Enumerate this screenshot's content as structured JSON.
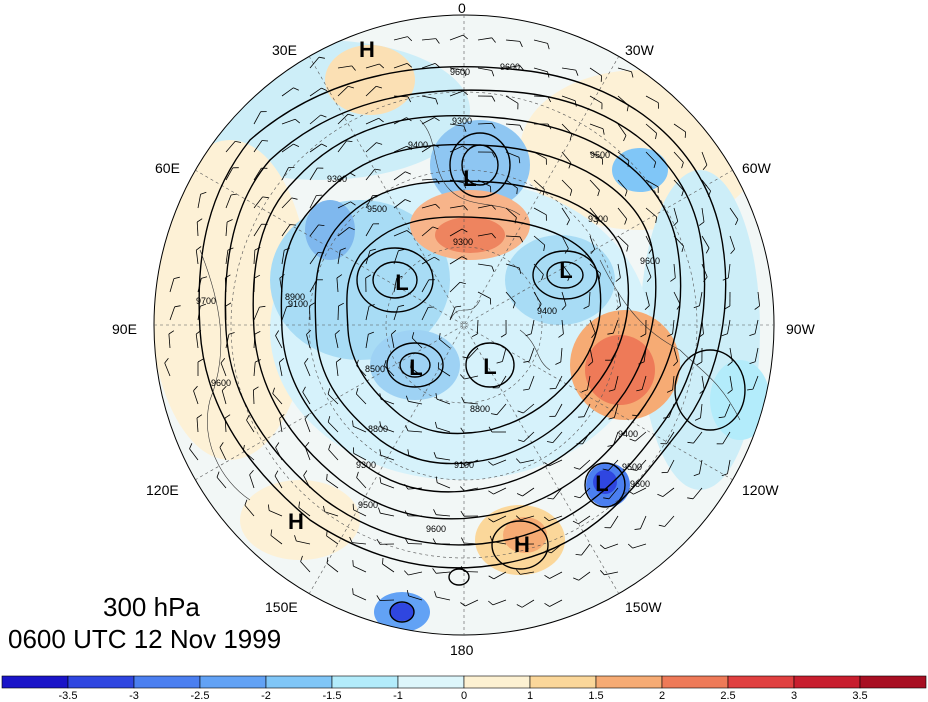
{
  "title": {
    "level": "300 hPa",
    "time": "0600 UTC 12 Nov 1999"
  },
  "longitude_labels": [
    "0",
    "30W",
    "60W",
    "90W",
    "120W",
    "150W",
    "180",
    "150E",
    "120E",
    "90E",
    "60E",
    "30E"
  ],
  "pressure_systems": [
    {
      "type": "H",
      "label": "H"
    },
    {
      "type": "L",
      "label": "L"
    },
    {
      "type": "L",
      "label": "L"
    },
    {
      "type": "L",
      "label": "L"
    },
    {
      "type": "L",
      "label": "L"
    },
    {
      "type": "L",
      "label": "L"
    },
    {
      "type": "L",
      "label": "L"
    },
    {
      "type": "H",
      "label": "H"
    },
    {
      "type": "H",
      "label": "H"
    }
  ],
  "contour_labels": [
    "9600",
    "9600",
    "9300",
    "9400",
    "9500",
    "9300",
    "9300",
    "9500",
    "9300",
    "9400",
    "9100",
    "9700",
    "8900",
    "8500",
    "8800",
    "8800",
    "9100",
    "9300",
    "9500",
    "9600",
    "9400",
    "9500",
    "9600",
    "9600",
    "9600"
  ],
  "colorbar": {
    "ticks": [
      "-3.5",
      "-3",
      "-2.5",
      "-2",
      "-1.5",
      "-1",
      "0",
      "1",
      "1.5",
      "2",
      "2.5",
      "3",
      "3.5"
    ],
    "colors": [
      "#1a14c8",
      "#2f46e0",
      "#4b7ff0",
      "#62a2f5",
      "#80c6f7",
      "#b3ecfb",
      "#ddf6fb",
      "#fdf1d2",
      "#fbd79a",
      "#f6ab74",
      "#ee7a58",
      "#e04040",
      "#c81e2e",
      "#a80f22"
    ]
  }
}
